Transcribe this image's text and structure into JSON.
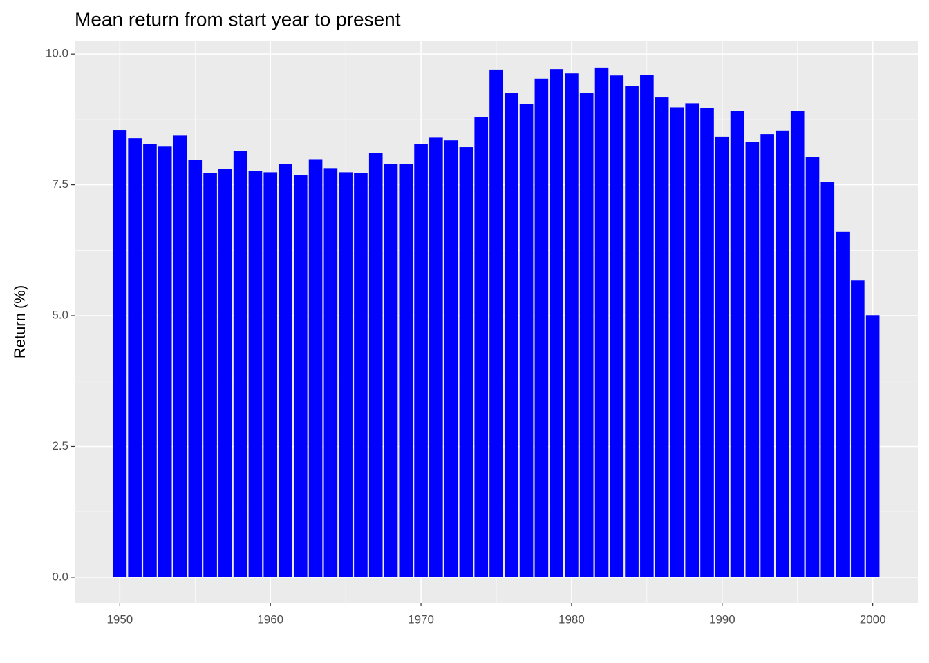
{
  "chart_data": {
    "type": "bar",
    "title": "Mean return from start year to present",
    "ylabel": "Return (%)",
    "x": [
      1950,
      1951,
      1952,
      1953,
      1954,
      1955,
      1956,
      1957,
      1958,
      1959,
      1960,
      1961,
      1962,
      1963,
      1964,
      1965,
      1966,
      1967,
      1968,
      1969,
      1970,
      1971,
      1972,
      1973,
      1974,
      1975,
      1976,
      1977,
      1978,
      1979,
      1980,
      1981,
      1982,
      1983,
      1984,
      1985,
      1986,
      1987,
      1988,
      1989,
      1990,
      1991,
      1992,
      1993,
      1994,
      1995,
      1996,
      1997,
      1998,
      1999,
      2000
    ],
    "values": [
      8.55,
      8.39,
      8.28,
      8.23,
      8.44,
      7.98,
      7.73,
      7.8,
      8.15,
      7.76,
      7.74,
      7.9,
      7.68,
      7.99,
      7.82,
      7.74,
      7.72,
      8.11,
      7.9,
      7.9,
      8.28,
      8.4,
      8.35,
      8.22,
      8.79,
      9.7,
      9.25,
      9.04,
      9.53,
      9.71,
      9.63,
      9.25,
      9.74,
      9.59,
      9.39,
      9.6,
      9.17,
      8.98,
      9.06,
      8.96,
      8.42,
      8.91,
      8.32,
      8.47,
      8.54,
      8.92,
      8.03,
      7.55,
      6.6,
      5.67,
      5.01
    ],
    "color": "#0000ff",
    "xlim": [
      1947.0,
      2003.0
    ],
    "xticks": [
      1950,
      1960,
      1970,
      1980,
      1990,
      2000
    ],
    "ylim": [
      -0.49,
      10.24
    ],
    "yticks": [
      {
        "value": 0,
        "label": "0.0"
      },
      2.5,
      {
        "value": 5,
        "label": "5.0"
      },
      7.5,
      {
        "value": 10,
        "label": "10.0"
      }
    ],
    "grid": true
  }
}
